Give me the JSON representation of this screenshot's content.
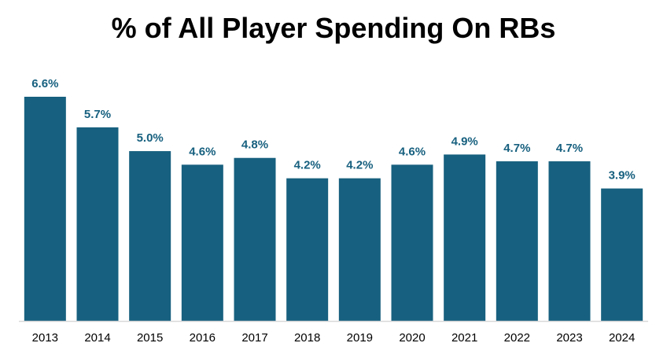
{
  "colors": {
    "bar": "#17607f",
    "data_label": "#17607f",
    "axis_line": "#d9d9d9",
    "tick_label": "#000000",
    "title": "#000000"
  },
  "chart_data": {
    "type": "bar",
    "title": "% of All Player Spending On RBs",
    "xlabel": "",
    "ylabel": "",
    "categories": [
      "2013",
      "2014",
      "2015",
      "2016",
      "2017",
      "2018",
      "2019",
      "2020",
      "2021",
      "2022",
      "2023",
      "2024"
    ],
    "values": [
      6.6,
      5.7,
      5.0,
      4.6,
      4.8,
      4.2,
      4.2,
      4.6,
      4.9,
      4.7,
      4.7,
      3.9
    ],
    "data_labels": [
      "6.6%",
      "5.7%",
      "5.0%",
      "4.6%",
      "4.8%",
      "4.2%",
      "4.2%",
      "4.6%",
      "4.9%",
      "4.7%",
      "4.7%",
      "3.9%"
    ],
    "ylim": [
      0,
      6.6
    ],
    "grid": false,
    "legend": "none"
  }
}
